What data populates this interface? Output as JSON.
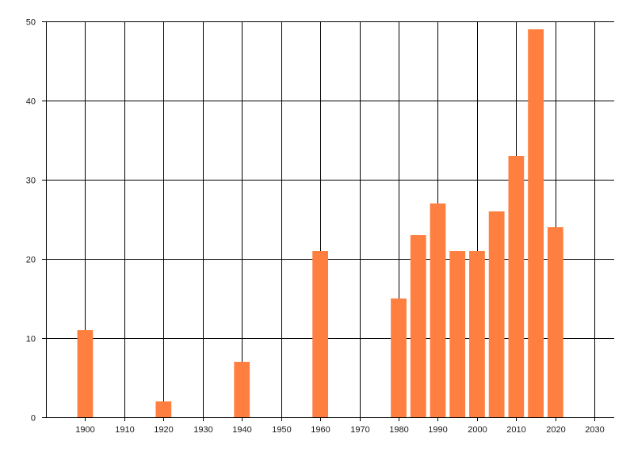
{
  "chart_data": {
    "type": "bar",
    "x": [
      1900,
      1920,
      1940,
      1960,
      1980,
      1985,
      1990,
      1995,
      2000,
      2005,
      2010,
      2015,
      2020
    ],
    "values": [
      11,
      2,
      7,
      21,
      15,
      23,
      27,
      21,
      21,
      26,
      33,
      49,
      24
    ],
    "xlim": [
      1890,
      2035
    ],
    "ylim": [
      0,
      50
    ],
    "x_ticks": [
      "1900",
      "1910",
      "1920",
      "1930",
      "1940",
      "1950",
      "1960",
      "1970",
      "1980",
      "1990",
      "2000",
      "2010",
      "2020",
      "2030"
    ],
    "y_ticks": [
      "0",
      "10",
      "20",
      "30",
      "40",
      "50"
    ],
    "bar_width_years": 4,
    "bar_color": "#ff7f40",
    "grid_color": "#000000",
    "grid": true,
    "title": "",
    "xlabel": "",
    "ylabel": ""
  }
}
